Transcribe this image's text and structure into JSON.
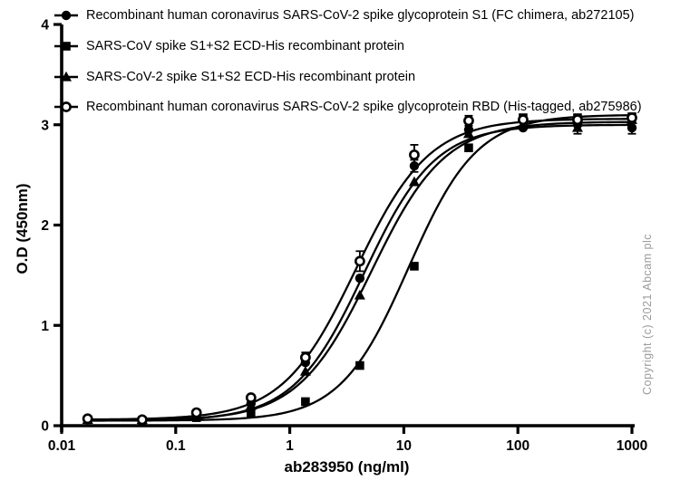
{
  "figure": {
    "background": "#ffffff",
    "ink_color": "#000000",
    "copyright": "Copyright (c) 2021 Abcam plc",
    "copyright_color": "#9b9b9b"
  },
  "legend": {
    "items": [
      {
        "marker": "circle-filled-icon",
        "label": "Recombinant human coronavirus SARS-CoV-2 spike glycoprotein S1 (FC chimera, ab272105)"
      },
      {
        "marker": "square-filled-icon",
        "label": "SARS-CoV spike S1+S2 ECD-His recombinant protein"
      },
      {
        "marker": "triangle-filled-icon",
        "label": "SARS-CoV-2 spike S1+S2 ECD-His recombinant protein"
      },
      {
        "marker": "circle-open-icon",
        "label": "Recombinant human coronavirus SARS-CoV-2 spike glycoprotein RBD (His-tagged, ab275986)"
      }
    ]
  },
  "chart_data": {
    "type": "scatter",
    "x_scale": "log",
    "xlabel": "ab283950 (ng/ml)",
    "ylabel": "O.D (450nm)",
    "xlim": [
      0.01,
      1000
    ],
    "ylim": [
      0,
      4
    ],
    "grid": false,
    "legend_position": "top-left",
    "x_ticks": [
      {
        "value": 0.01,
        "label": "0.01"
      },
      {
        "value": 0.1,
        "label": "0.1"
      },
      {
        "value": 1,
        "label": "1"
      },
      {
        "value": 10,
        "label": "10"
      },
      {
        "value": 100,
        "label": "100"
      },
      {
        "value": 1000,
        "label": "1000"
      }
    ],
    "y_ticks": [
      {
        "value": 0,
        "label": "0"
      },
      {
        "value": 1,
        "label": "1"
      },
      {
        "value": 2,
        "label": "2"
      },
      {
        "value": 3,
        "label": "3"
      },
      {
        "value": 4,
        "label": "4"
      }
    ],
    "x": [
      0.0169,
      0.0508,
      0.152,
      0.457,
      1.372,
      4.115,
      12.35,
      37.04,
      111.1,
      333.3,
      1000
    ],
    "series": [
      {
        "name": "Recombinant human coronavirus SARS-CoV-2 spike glycoprotein S1 (FC chimera, ab272105)",
        "marker": "circle-filled",
        "values": [
          0.06,
          0.06,
          0.12,
          0.22,
          0.63,
          1.47,
          2.59,
          2.95,
          2.97,
          3.0,
          2.97
        ],
        "errors": [
          0,
          0,
          0,
          0,
          0,
          0,
          0.06,
          0,
          0,
          0,
          0.06
        ],
        "fit_4pl": {
          "bottom": 0.05,
          "top": 3.0,
          "ec50": 4.5,
          "hill": 1.4
        }
      },
      {
        "name": "SARS-CoV spike S1+S2 ECD-His recombinant protein",
        "marker": "square-filled",
        "values": [
          0.06,
          0.05,
          0.08,
          0.12,
          0.24,
          0.6,
          1.59,
          2.77,
          3.07,
          3.07,
          3.08
        ],
        "errors": [
          0,
          0,
          0,
          0,
          0,
          0,
          0,
          0,
          0,
          0,
          0
        ],
        "fit_4pl": {
          "bottom": 0.05,
          "top": 3.1,
          "ec50": 11.0,
          "hill": 1.45
        }
      },
      {
        "name": "SARS-CoV-2 spike S1+S2 ECD-His recombinant protein",
        "marker": "triangle-filled",
        "values": [
          0.06,
          0.06,
          0.11,
          0.2,
          0.54,
          1.3,
          2.43,
          2.91,
          3.0,
          2.97,
          3.05
        ],
        "errors": [
          0,
          0,
          0,
          0,
          0,
          0,
          0,
          0,
          0,
          0.06,
          0
        ],
        "fit_4pl": {
          "bottom": 0.05,
          "top": 3.03,
          "ec50": 5.2,
          "hill": 1.35
        }
      },
      {
        "name": "Recombinant human coronavirus SARS-CoV-2 spike glycoprotein RBD (His-tagged, ab275986)",
        "marker": "circle-open",
        "values": [
          0.07,
          0.06,
          0.13,
          0.28,
          0.68,
          1.64,
          2.7,
          3.04,
          3.05,
          3.05,
          3.07
        ],
        "errors": [
          0,
          0,
          0,
          0,
          0.05,
          0.1,
          0.1,
          0.05,
          0,
          0,
          0
        ],
        "fit_4pl": {
          "bottom": 0.06,
          "top": 3.06,
          "ec50": 3.8,
          "hill": 1.35
        }
      }
    ]
  }
}
